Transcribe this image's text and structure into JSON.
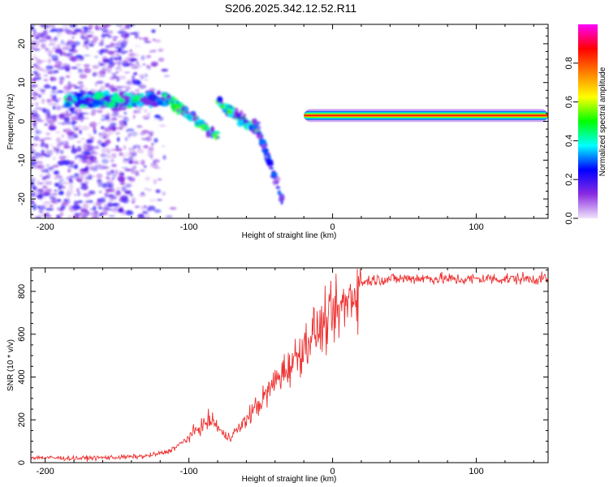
{
  "title": "S206.2025.342.12.52.R11",
  "colors": {
    "snr_line": "#ee3333",
    "frame": "#000000",
    "background": "#ffffff",
    "colorbar_stops": [
      "#f0e4fa",
      "#8a2be2",
      "#0000ff",
      "#00ffff",
      "#00ff00",
      "#ffff00",
      "#ff8000",
      "#ff0000",
      "#ff00ff"
    ]
  },
  "chart_data": [
    {
      "id": "spectrogram",
      "type": "heatmap",
      "title": "",
      "xlabel": "Height of straight line (km)",
      "ylabel": "Frequency (Hz)",
      "xlim": [
        -210,
        150
      ],
      "ylim": [
        -25,
        25
      ],
      "xticks": [
        -200,
        -100,
        0,
        100
      ],
      "yticks": [
        -20,
        -10,
        0,
        10,
        20
      ],
      "colorbar": {
        "label": "Normalized spectral amplitude",
        "range": [
          0,
          1
        ],
        "ticks": [
          "0.0",
          "0.2",
          "0.4",
          "0.6",
          "0.8"
        ]
      },
      "features": [
        {
          "name": "noise-scatter",
          "x_range": [
            -210,
            -110
          ],
          "freq_range": [
            -25,
            25
          ],
          "amplitude": 0.1
        },
        {
          "name": "horizontal-band",
          "x_range": [
            -185,
            -115
          ],
          "freq": 5.5,
          "amplitude": 0.3
        },
        {
          "name": "descending-arm-1",
          "x": [
            -115,
            -80
          ],
          "freq": [
            6,
            -4
          ],
          "amplitude": 0.35
        },
        {
          "name": "descending-arm-2",
          "x": [
            -80,
            -50
          ],
          "freq": [
            5,
            -3
          ],
          "amplitude": 0.35
        },
        {
          "name": "descending-arm-3",
          "x": [
            -55,
            -35
          ],
          "freq": [
            1,
            -20
          ],
          "amplitude": 0.2
        },
        {
          "name": "stable-tone",
          "x": [
            -20,
            150
          ],
          "freq": 1.5,
          "amplitude": 0.8
        }
      ]
    },
    {
      "id": "snr",
      "type": "line",
      "title": "",
      "xlabel": "Height of straight line (km)",
      "ylabel": "SNR (10 * v/v)",
      "xlim": [
        -210,
        150
      ],
      "ylim": [
        0,
        910
      ],
      "xticks": [
        -200,
        -100,
        0,
        100
      ],
      "yticks": [
        0,
        200,
        400,
        600,
        800
      ],
      "series": [
        {
          "name": "SNR",
          "x": [
            -210,
            -180,
            -150,
            -130,
            -115,
            -105,
            -95,
            -85,
            -80,
            -75,
            -70,
            -65,
            -60,
            -55,
            -50,
            -45,
            -40,
            -35,
            -30,
            -25,
            -20,
            -15,
            -10,
            -5,
            0,
            5,
            10,
            15,
            20,
            25,
            30,
            40,
            50,
            60,
            70,
            80,
            90,
            100,
            110,
            120,
            130,
            140,
            150
          ],
          "values": [
            25,
            20,
            25,
            30,
            50,
            90,
            150,
            200,
            170,
            120,
            130,
            160,
            200,
            250,
            280,
            330,
            380,
            420,
            450,
            500,
            540,
            600,
            620,
            650,
            680,
            710,
            750,
            800,
            840,
            850,
            855,
            858,
            860,
            862,
            860,
            858,
            855,
            858,
            860,
            858,
            860,
            858,
            860
          ]
        }
      ]
    }
  ]
}
